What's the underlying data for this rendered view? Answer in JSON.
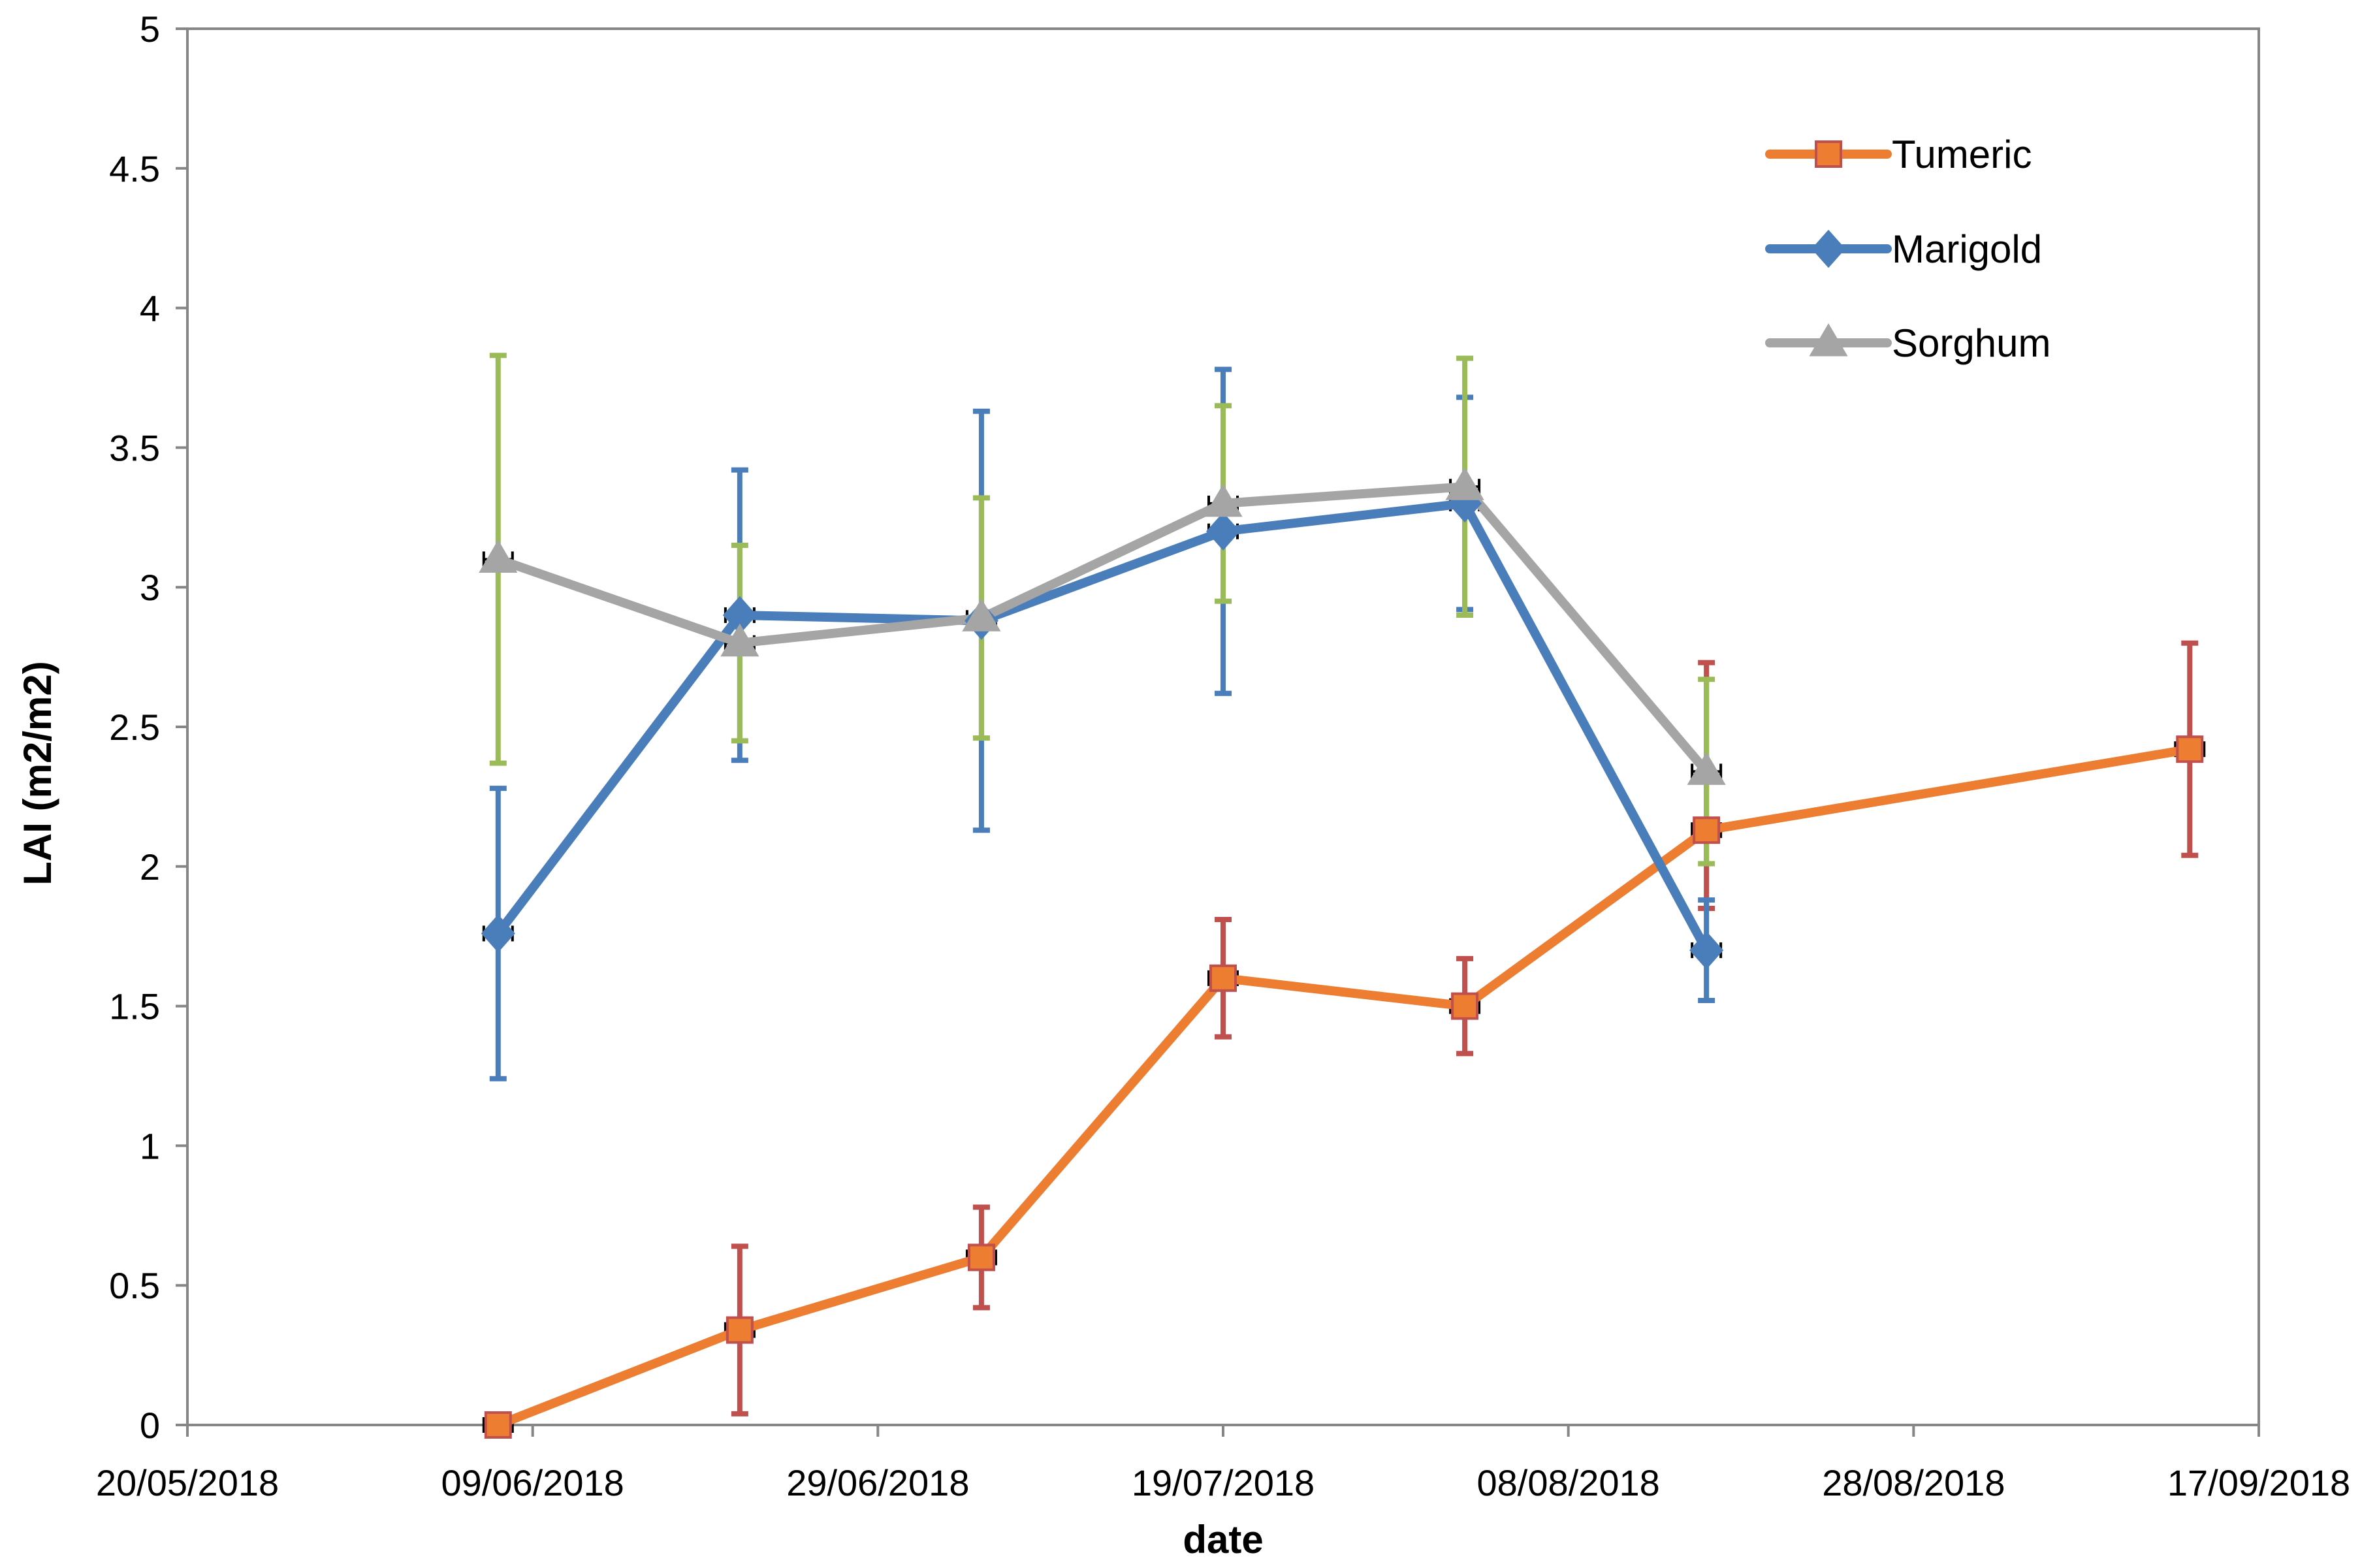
{
  "chart_data": {
    "type": "line",
    "title": "",
    "xlabel": "date",
    "ylabel": "LAI (m2/m2)",
    "xlim": [
      "20/05/2018",
      "17/09/2018"
    ],
    "ylim": [
      0,
      5
    ],
    "x_tick_labels": [
      "20/05/2018",
      "09/06/2018",
      "29/06/2018",
      "19/07/2018",
      "08/08/2018",
      "28/08/2018",
      "17/09/2018"
    ],
    "y_tick_labels": [
      "0",
      "0.5",
      "1",
      "1.5",
      "2",
      "2.5",
      "3",
      "3.5",
      "4",
      "4.5",
      "5"
    ],
    "grid": false,
    "legend_position": "top-right",
    "series": [
      {
        "name": "Tumeric",
        "color": "#ED7D31",
        "marker": "square",
        "marker_edge": "#C0504D",
        "error_color": "#C0504D",
        "points": [
          {
            "x": "07/06/2018",
            "y": 0.0,
            "err_low": 0.0,
            "err_high": 0.0
          },
          {
            "x": "21/06/2018",
            "y": 0.34,
            "err_low": 0.3,
            "err_high": 0.3
          },
          {
            "x": "05/07/2018",
            "y": 0.6,
            "err_low": 0.18,
            "err_high": 0.18
          },
          {
            "x": "19/07/2018",
            "y": 1.6,
            "err_low": 0.21,
            "err_high": 0.21
          },
          {
            "x": "02/08/2018",
            "y": 1.5,
            "err_low": 0.17,
            "err_high": 0.17
          },
          {
            "x": "16/08/2018",
            "y": 2.13,
            "err_low": 0.28,
            "err_high": 0.6
          },
          {
            "x": "13/09/2018",
            "y": 2.42,
            "err_low": 0.38,
            "err_high": 0.38
          }
        ]
      },
      {
        "name": "Marigold",
        "color": "#4A7EBB",
        "marker": "diamond",
        "marker_edge": "#4A7EBB",
        "error_color": "#4A7EBB",
        "points": [
          {
            "x": "07/06/2018",
            "y": 1.76,
            "err_low": 0.52,
            "err_high": 0.52
          },
          {
            "x": "21/06/2018",
            "y": 2.9,
            "err_low": 0.52,
            "err_high": 0.52
          },
          {
            "x": "05/07/2018",
            "y": 2.88,
            "err_low": 0.75,
            "err_high": 0.75
          },
          {
            "x": "19/07/2018",
            "y": 3.2,
            "err_low": 0.58,
            "err_high": 0.58
          },
          {
            "x": "02/08/2018",
            "y": 3.3,
            "err_low": 0.38,
            "err_high": 0.38
          },
          {
            "x": "16/08/2018",
            "y": 1.7,
            "err_low": 0.18,
            "err_high": 0.18
          }
        ]
      },
      {
        "name": "Sorghum",
        "color": "#A5A5A5",
        "marker": "triangle",
        "marker_edge": "#A5A5A5",
        "error_color": "#9BBB59",
        "points": [
          {
            "x": "07/06/2018",
            "y": 3.1,
            "err_low": 0.73,
            "err_high": 0.73
          },
          {
            "x": "21/06/2018",
            "y": 2.8,
            "err_low": 0.35,
            "err_high": 0.35
          },
          {
            "x": "05/07/2018",
            "y": 2.89,
            "err_low": 0.43,
            "err_high": 0.43
          },
          {
            "x": "19/07/2018",
            "y": 3.3,
            "err_low": 0.35,
            "err_high": 0.35
          },
          {
            "x": "02/08/2018",
            "y": 3.36,
            "err_low": 0.46,
            "err_high": 0.46
          },
          {
            "x": "16/08/2018",
            "y": 2.34,
            "err_low": 0.33,
            "err_high": 0.33
          }
        ]
      }
    ]
  }
}
